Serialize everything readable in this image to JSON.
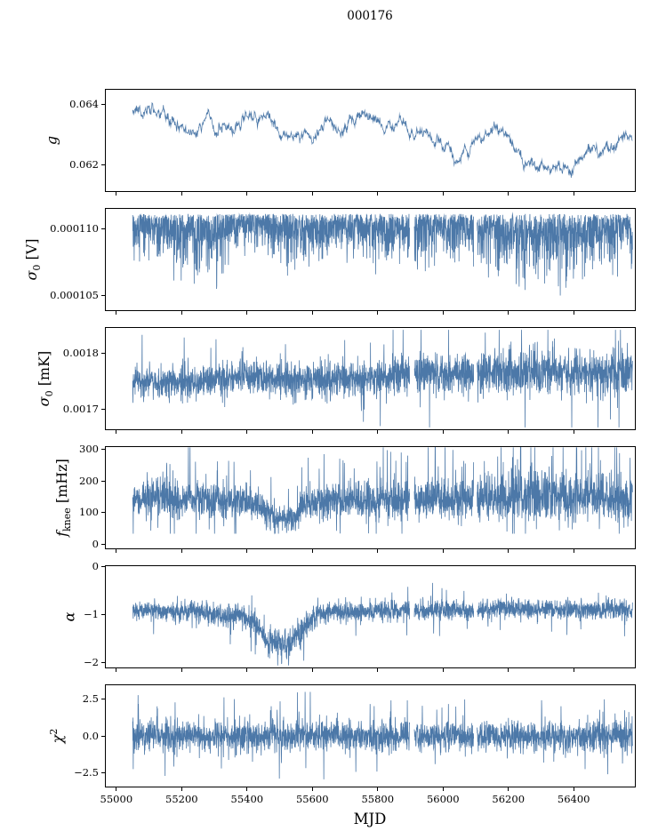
{
  "chart_data": {
    "type": "line",
    "title": "000176",
    "xlabel": "MJD",
    "line_color": "#4c78a8",
    "axis": {
      "xlim": [
        54965,
        56590
      ],
      "xticks": [
        55000,
        55200,
        55400,
        55600,
        55800,
        56000,
        56200,
        56400
      ],
      "xtick_labels": [
        "55000",
        "55200",
        "55400",
        "55600",
        "55800",
        "56000",
        "56200",
        "56400"
      ],
      "data_gaps_mjd": [
        [
          55898,
          55912
        ],
        [
          56094,
          56104
        ]
      ]
    },
    "panels": [
      {
        "name": "g",
        "ylabel": {
          "base": "g",
          "sub": "",
          "sup": "",
          "unit": ""
        },
        "yticks": [
          {
            "v": 0.062,
            "label": "0.062"
          },
          {
            "v": 0.064,
            "label": "0.064"
          }
        ],
        "ylim": [
          0.0611,
          0.0645
        ],
        "use_gaps": false,
        "series": {
          "kind": "walk",
          "n": 1500,
          "seed": 11,
          "lw": 0.75,
          "x_start": 55050,
          "x_end": 56580,
          "ar": 0.93,
          "step": 0.37,
          "amp": 0.00016,
          "fuzz": 4e-05,
          "mean_points": [
            [
              55050,
              0.0639
            ],
            [
              55110,
              0.0638
            ],
            [
              55150,
              0.0634
            ],
            [
              55200,
              0.0631
            ],
            [
              55255,
              0.063
            ],
            [
              55280,
              0.0635
            ],
            [
              55310,
              0.0632
            ],
            [
              55360,
              0.0633
            ],
            [
              55410,
              0.0634
            ],
            [
              55440,
              0.0636
            ],
            [
              55480,
              0.0633
            ],
            [
              55520,
              0.0631
            ],
            [
              55560,
              0.063
            ],
            [
              55600,
              0.0629
            ],
            [
              55645,
              0.0634
            ],
            [
              55685,
              0.0631
            ],
            [
              55725,
              0.0634
            ],
            [
              55765,
              0.0637
            ],
            [
              55805,
              0.0636
            ],
            [
              55845,
              0.0632
            ],
            [
              55885,
              0.0631
            ],
            [
              55925,
              0.063
            ],
            [
              55965,
              0.0626
            ],
            [
              56005,
              0.0625
            ],
            [
              56045,
              0.0623
            ],
            [
              56085,
              0.0625
            ],
            [
              56125,
              0.0629
            ],
            [
              56165,
              0.0631
            ],
            [
              56205,
              0.0627
            ],
            [
              56245,
              0.0622
            ],
            [
              56285,
              0.062
            ],
            [
              56325,
              0.0616
            ],
            [
              56365,
              0.0619
            ],
            [
              56405,
              0.0623
            ],
            [
              56445,
              0.0626
            ],
            [
              56505,
              0.0626
            ],
            [
              56580,
              0.0628
            ]
          ],
          "clip": [
            0.0613,
            0.0643
          ]
        }
      },
      {
        "name": "sigma0_V",
        "ylabel": {
          "base": "σ",
          "sub": "0",
          "sup": "",
          "unit": " [V]"
        },
        "yticks": [
          {
            "v": 0.000105,
            "label": "0.000105"
          },
          {
            "v": 0.00011,
            "label": "0.000110"
          }
        ],
        "ylim": [
          0.0001038,
          0.0001116
        ],
        "use_gaps": true,
        "series": {
          "kind": "down",
          "n": 2700,
          "seed": 22,
          "lw": 0.8,
          "x_start": 55050,
          "x_end": 56580,
          "spike_prob": 0.002,
          "mean_points": [
            [
              55050,
              0.00011115
            ],
            [
              56580,
              0.00011115
            ]
          ],
          "amp_points": [
            [
              55050,
              2.2e-06
            ],
            [
              55120,
              3e-06
            ],
            [
              55200,
              4.3e-06
            ],
            [
              55300,
              4e-06
            ],
            [
              55360,
              2.3e-06
            ],
            [
              55450,
              2.1e-06
            ],
            [
              55520,
              3.6e-06
            ],
            [
              55600,
              3.3e-06
            ],
            [
              55690,
              2.3e-06
            ],
            [
              55800,
              2.9e-06
            ],
            [
              55900,
              3.3e-06
            ],
            [
              56000,
              3e-06
            ],
            [
              56100,
              2.9e-06
            ],
            [
              56200,
              4.1e-06
            ],
            [
              56300,
              4.7e-06
            ],
            [
              56400,
              4.4e-06
            ],
            [
              56480,
              3.4e-06
            ],
            [
              56580,
              2.7e-06
            ]
          ],
          "clip": [
            0.000104,
            0.00011142
          ]
        }
      },
      {
        "name": "sigma0_mK",
        "ylabel": {
          "base": "σ",
          "sub": "0",
          "sup": "",
          "unit": " [mK]"
        },
        "yticks": [
          {
            "v": 0.0017,
            "label": "0.0017"
          },
          {
            "v": 0.0018,
            "label": "0.0018"
          }
        ],
        "ylim": [
          0.001662,
          0.001848
        ],
        "use_gaps": true,
        "series": {
          "kind": "sym",
          "n": 2700,
          "seed": 33,
          "lw": 0.8,
          "x_start": 55050,
          "x_end": 56580,
          "spike_prob": 0.01,
          "spike_up_bias": 0.6,
          "mean_points": [
            [
              55050,
              0.001752
            ],
            [
              55250,
              0.001747
            ],
            [
              55350,
              0.001756
            ],
            [
              55500,
              0.001754
            ],
            [
              55650,
              0.001752
            ],
            [
              55800,
              0.001757
            ],
            [
              55900,
              0.001766
            ],
            [
              56000,
              0.001765
            ],
            [
              56150,
              0.001767
            ],
            [
              56300,
              0.001769
            ],
            [
              56450,
              0.001767
            ],
            [
              56580,
              0.001767
            ]
          ],
          "amp_points": [
            [
              55050,
              3e-05
            ],
            [
              55300,
              3e-05
            ],
            [
              55600,
              3.2e-05
            ],
            [
              55850,
              3.4e-05
            ],
            [
              55950,
              4e-05
            ],
            [
              56200,
              4.2e-05
            ],
            [
              56580,
              4e-05
            ]
          ],
          "clip": [
            0.001667,
            0.001843
          ]
        }
      },
      {
        "name": "f_knee",
        "ylabel": {
          "base": "f",
          "sub": "knee",
          "sup": "",
          "unit": " [mHz]"
        },
        "yticks": [
          {
            "v": 0,
            "label": "0"
          },
          {
            "v": 100,
            "label": "100"
          },
          {
            "v": 200,
            "label": "200"
          },
          {
            "v": 300,
            "label": "300"
          }
        ],
        "ylim": [
          -15,
          310
        ],
        "use_gaps": true,
        "series": {
          "kind": "sym",
          "n": 2700,
          "seed": 44,
          "lw": 0.8,
          "x_start": 55050,
          "x_end": 56580,
          "spike_prob": 0.035,
          "spike_up_bias": 0.8,
          "mean_points": [
            [
              55050,
              140
            ],
            [
              55200,
              145
            ],
            [
              55320,
              140
            ],
            [
              55430,
              125
            ],
            [
              55460,
              95
            ],
            [
              55490,
              82
            ],
            [
              55545,
              82
            ],
            [
              55575,
              125
            ],
            [
              55700,
              140
            ],
            [
              55850,
              135
            ],
            [
              56000,
              140
            ],
            [
              56100,
              145
            ],
            [
              56250,
              150
            ],
            [
              56400,
              150
            ],
            [
              56580,
              145
            ]
          ],
          "amp_points": [
            [
              55050,
              55
            ],
            [
              55300,
              60
            ],
            [
              55450,
              45
            ],
            [
              55545,
              38
            ],
            [
              55610,
              60
            ],
            [
              55900,
              62
            ],
            [
              56100,
              70
            ],
            [
              56300,
              82
            ],
            [
              56580,
              76
            ]
          ],
          "clip": [
            34,
            306
          ]
        }
      },
      {
        "name": "alpha",
        "ylabel": {
          "base": "α",
          "sub": "",
          "sup": "",
          "unit": ""
        },
        "yticks": [
          {
            "v": -2,
            "label": "−2"
          },
          {
            "v": -1,
            "label": "−1"
          },
          {
            "v": 0,
            "label": "0"
          }
        ],
        "ylim": [
          -2.12,
          0.02
        ],
        "use_gaps": true,
        "series": {
          "kind": "sym",
          "n": 2700,
          "seed": 55,
          "lw": 0.8,
          "x_start": 55050,
          "x_end": 56580,
          "spike_prob": 0.012,
          "spike_up_bias": 0.35,
          "mean_points": [
            [
              55050,
              -0.92
            ],
            [
              55250,
              -0.95
            ],
            [
              55330,
              -1.05
            ],
            [
              55385,
              -1.0
            ],
            [
              55430,
              -1.25
            ],
            [
              55465,
              -1.55
            ],
            [
              55525,
              -1.6
            ],
            [
              55565,
              -1.35
            ],
            [
              55605,
              -1.05
            ],
            [
              55655,
              -0.95
            ],
            [
              55800,
              -0.92
            ],
            [
              56000,
              -0.92
            ],
            [
              56200,
              -0.88
            ],
            [
              56400,
              -0.9
            ],
            [
              56580,
              -0.9
            ]
          ],
          "amp_points": [
            [
              55050,
              0.18
            ],
            [
              55300,
              0.22
            ],
            [
              55465,
              0.3
            ],
            [
              55560,
              0.28
            ],
            [
              55650,
              0.2
            ],
            [
              56000,
              0.2
            ],
            [
              56580,
              0.2
            ]
          ],
          "clip": [
            -2.06,
            -0.33
          ]
        }
      },
      {
        "name": "chi2",
        "ylabel": {
          "base": "χ",
          "sub": "",
          "sup": "2",
          "unit": ""
        },
        "yticks": [
          {
            "v": -2.5,
            "label": "−2.5"
          },
          {
            "v": 0,
            "label": "0.0"
          },
          {
            "v": 2.5,
            "label": "2.5"
          }
        ],
        "ylim": [
          -3.5,
          3.5
        ],
        "use_gaps": true,
        "series": {
          "kind": "sym",
          "n": 2700,
          "seed": 66,
          "lw": 0.8,
          "x_start": 55050,
          "x_end": 56580,
          "spike_prob": 0.02,
          "spike_up_bias": 0.5,
          "mean_points": [
            [
              55050,
              0
            ],
            [
              56580,
              0
            ]
          ],
          "amp_points": [
            [
              55050,
              1.0
            ],
            [
              55500,
              1.05
            ],
            [
              55900,
              1.0
            ],
            [
              56100,
              1.05
            ],
            [
              56580,
              1.0
            ]
          ],
          "clip": [
            -3.15,
            3.2
          ]
        }
      }
    ]
  }
}
